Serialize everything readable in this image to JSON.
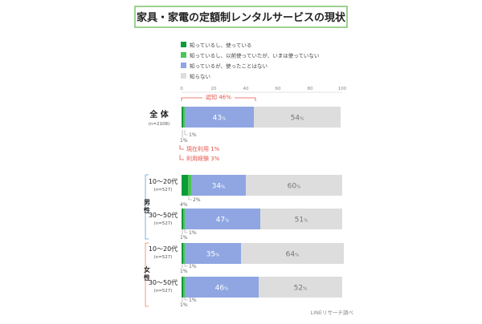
{
  "title": "家具・家電の定額制レンタルサービスの現状",
  "source": "LINEリサーチ調べ",
  "colors": {
    "title_border": "#7cc36a",
    "s0": "#0d9b3a",
    "s1": "#4cc55a",
    "s2": "#8fa6e3",
    "s3": "#dddddd",
    "annotation": "#e8544a",
    "male_bracket": "#5aa0d8",
    "female_bracket": "#e9855b"
  },
  "chart_data": {
    "type": "bar",
    "orientation": "horizontal",
    "stacked": true,
    "xlim": [
      0,
      100
    ],
    "x_ticks": [
      "0",
      "20",
      "40",
      "60",
      "80",
      "100"
    ],
    "legend": [
      "知っているし、使っている",
      "知っているし、以前使っていたが、いまは使っていない",
      "知っているが、使ったことはない",
      "知らない"
    ],
    "groups": [
      {
        "label": "",
        "rows": [
          0
        ]
      },
      {
        "label": "男性",
        "rows": [
          1,
          2
        ]
      },
      {
        "label": "女性",
        "rows": [
          3,
          4
        ]
      }
    ],
    "rows": [
      {
        "label": "全 体",
        "n": "(n=2108)",
        "values": [
          1,
          1,
          43,
          54
        ],
        "value_labels": [
          "1%",
          "1%",
          "43%",
          "54%"
        ]
      },
      {
        "label": "10～20代",
        "n": "(n=527)",
        "values": [
          4,
          2,
          34,
          60
        ],
        "value_labels": [
          "4%",
          "2%",
          "34%",
          "60%"
        ]
      },
      {
        "label": "30～50代",
        "n": "(n=527)",
        "values": [
          1,
          1,
          47,
          51
        ],
        "value_labels": [
          "1%",
          "1%",
          "47%",
          "51%"
        ]
      },
      {
        "label": "10～20代",
        "n": "(n=527)",
        "values": [
          1,
          1,
          35,
          64
        ],
        "value_labels": [
          "1%",
          "1%",
          "35%",
          "64%"
        ]
      },
      {
        "label": "30～50代",
        "n": "(n=527)",
        "values": [
          1,
          1,
          46,
          52
        ],
        "value_labels": [
          "1%",
          "1%",
          "46%",
          "52%"
        ]
      }
    ],
    "annotations": {
      "awareness": "認知 46%",
      "current_use": "現在利用 1%",
      "experience": "利用経験 3%"
    }
  }
}
